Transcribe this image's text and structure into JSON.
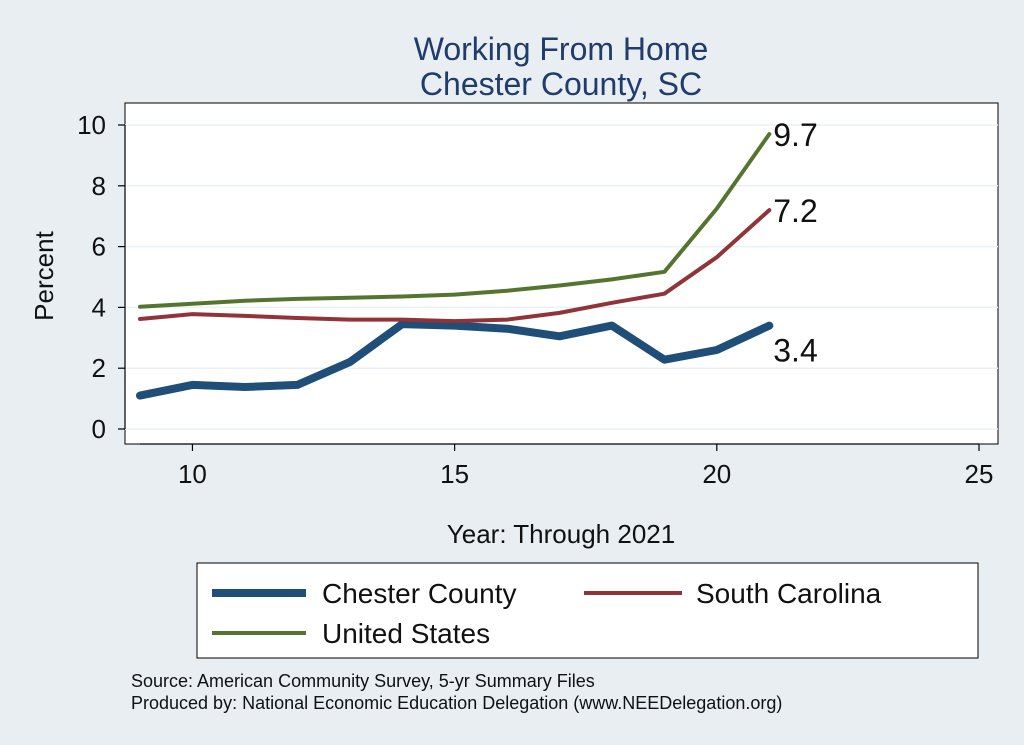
{
  "chart_data": {
    "type": "line",
    "title": "Working From Home",
    "subtitle": "Chester County, SC",
    "xlabel": "Year: Through 2021",
    "ylabel": "Percent",
    "xlim": [
      9,
      25
    ],
    "ylim": [
      0,
      10
    ],
    "xticks": [
      10,
      15,
      20,
      25
    ],
    "yticks": [
      0,
      2,
      4,
      6,
      8,
      10
    ],
    "grid": true,
    "legend_position": "bottom",
    "series": [
      {
        "name": "Chester County",
        "color": "#1f4e79",
        "x": [
          9,
          10,
          11,
          12,
          13,
          14,
          15,
          16,
          17,
          18,
          19,
          20,
          21
        ],
        "y": [
          1.1,
          1.45,
          1.38,
          1.45,
          2.2,
          3.45,
          3.4,
          3.3,
          3.05,
          3.4,
          2.28,
          2.6,
          3.4
        ],
        "end_label": "3.4"
      },
      {
        "name": "South Carolina",
        "color": "#913439",
        "x": [
          9,
          10,
          11,
          12,
          13,
          14,
          15,
          16,
          17,
          18,
          19,
          20,
          21
        ],
        "y": [
          3.62,
          3.78,
          3.72,
          3.65,
          3.6,
          3.6,
          3.55,
          3.6,
          3.82,
          4.15,
          4.45,
          5.65,
          7.2
        ],
        "end_label": "7.2"
      },
      {
        "name": "United States",
        "color": "#55752f",
        "x": [
          9,
          10,
          11,
          12,
          13,
          14,
          15,
          16,
          17,
          18,
          19,
          20,
          21
        ],
        "y": [
          4.02,
          4.12,
          4.22,
          4.28,
          4.32,
          4.36,
          4.42,
          4.55,
          4.72,
          4.92,
          5.17,
          7.25,
          9.7
        ],
        "end_label": "9.7"
      }
    ]
  },
  "notes": [
    "Source: American Community Survey, 5-yr Summary Files",
    "Produced by: National Economic Education Delegation (www.NEEDelegation.org)"
  ]
}
